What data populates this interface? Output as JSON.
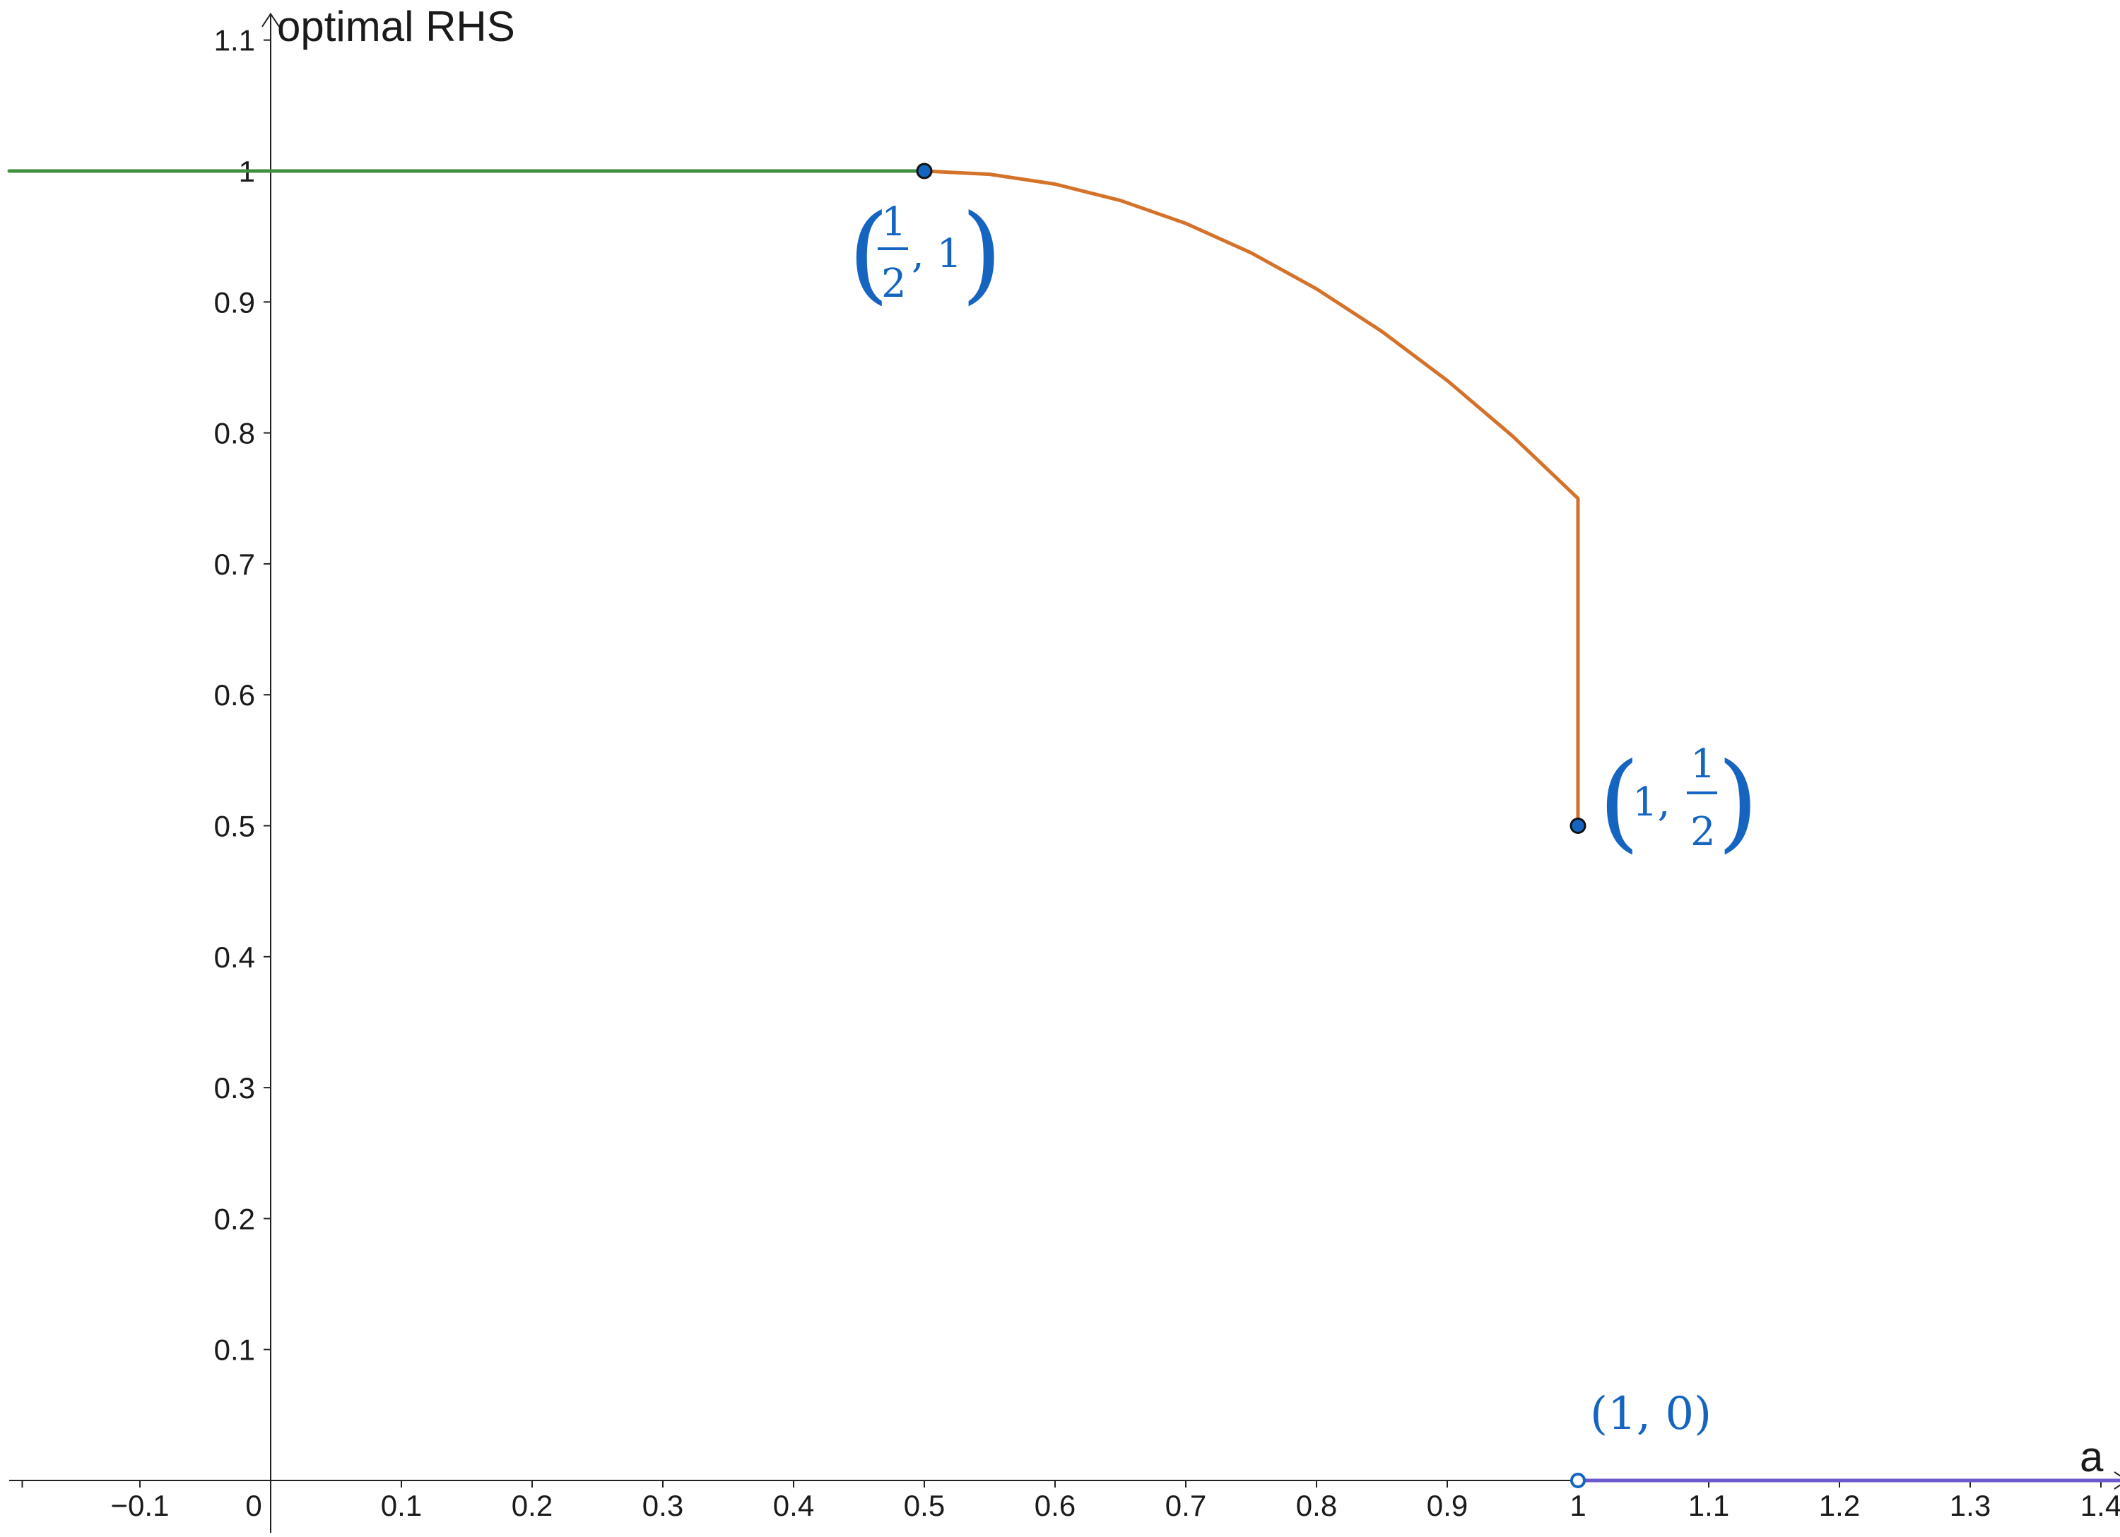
{
  "chart_data": {
    "type": "line",
    "xlabel": "a",
    "ylabel": "optimal RHS",
    "xlim": [
      -0.2,
      1.42
    ],
    "ylim": [
      -0.04,
      1.12
    ],
    "x_ticks": [
      -0.1,
      0,
      0.1,
      0.2,
      0.3,
      0.4,
      0.5,
      0.6,
      0.7,
      0.8,
      0.9,
      1,
      1.1,
      1.2,
      1.3,
      1.4
    ],
    "x_tick_labels": [
      "−0.1",
      "0",
      "0.1",
      "0.2",
      "0.3",
      "0.4",
      "0.5",
      "0.6",
      "0.7",
      "0.8",
      "0.9",
      "1",
      "1.1",
      "1.2",
      "1.3",
      "1.4"
    ],
    "y_ticks": [
      0.1,
      0.2,
      0.3,
      0.4,
      0.5,
      0.6,
      0.7,
      0.8,
      0.9,
      1,
      1.1
    ],
    "y_tick_labels": [
      "0.1",
      "0.2",
      "0.3",
      "0.4",
      "0.5",
      "0.6",
      "0.7",
      "0.8",
      "0.9",
      "1",
      "1.1"
    ],
    "grid": false,
    "series": [
      {
        "color": "#3f8f3f",
        "points": [
          [
            -0.2,
            1.0
          ],
          [
            0.5,
            1.0
          ]
        ]
      },
      {
        "color": "#d4722a",
        "points": [
          [
            0.5,
            1.0
          ],
          [
            0.55,
            0.9975
          ],
          [
            0.6,
            0.99
          ],
          [
            0.65,
            0.9775
          ],
          [
            0.7,
            0.96
          ],
          [
            0.75,
            0.9375
          ],
          [
            0.8,
            0.91
          ],
          [
            0.85,
            0.8775
          ],
          [
            0.9,
            0.84
          ],
          [
            0.95,
            0.7975
          ],
          [
            1.0,
            0.75
          ],
          [
            1.0,
            0.5
          ]
        ]
      },
      {
        "color": "#6a5acd",
        "points": [
          [
            1.0,
            0.0
          ],
          [
            1.42,
            0.0
          ]
        ]
      }
    ],
    "points": [
      {
        "x": 0.5,
        "y": 1.0,
        "style": "filled",
        "label": [
          "(",
          "1",
          "2",
          ", 1",
          ")"
        ]
      },
      {
        "x": 1.0,
        "y": 0.5,
        "style": "filled",
        "label": [
          "(",
          "1, ",
          "1",
          "2",
          ")"
        ]
      },
      {
        "x": 1.0,
        "y": 0.0,
        "style": "open",
        "label": "(1, 0)"
      }
    ]
  }
}
